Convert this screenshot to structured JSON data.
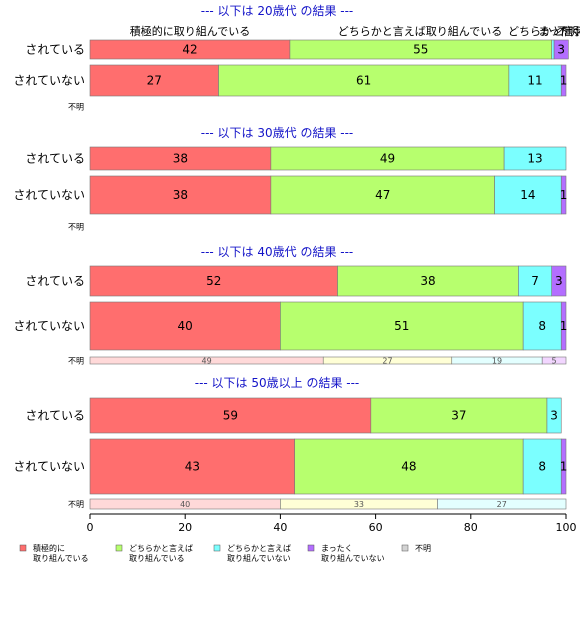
{
  "colors": {
    "c1": "#ff6e6e",
    "c2": "#b7ff6e",
    "c3": "#7bffff",
    "c4": "#b36eff",
    "c5": "#d3d3d3",
    "title": "#1414c8"
  },
  "top_headers": [
    "積極的に取り組んでいる",
    "どちらかと言えば取り組んでいる",
    "どちらかと言えば",
    "まったく",
    "不明"
  ],
  "legend": [
    {
      "color_key": "c1",
      "label_lines": [
        "積極的に",
        "取り組んでいる"
      ]
    },
    {
      "color_key": "c2",
      "label_lines": [
        "どちらかと言えば",
        "取り組んでいる"
      ]
    },
    {
      "color_key": "c3",
      "label_lines": [
        "どちらかと言えば",
        "取り組んでいない"
      ]
    },
    {
      "color_key": "c4",
      "label_lines": [
        "まったく",
        "取り組んでいない"
      ]
    },
    {
      "color_key": "c5",
      "label_lines": [
        "不明"
      ]
    }
  ],
  "chart_data": {
    "type": "bar",
    "orientation": "horizontal",
    "stacked": true,
    "xlim": [
      0,
      100
    ],
    "xticks": [
      0,
      20,
      40,
      60,
      80,
      100
    ],
    "segment_categories": [
      "積極的に取り組んでいる",
      "どちらかと言えば取り組んでいる",
      "どちらかと言えば取り組んでいない",
      "まったく取り組んでいない",
      "不明"
    ],
    "panels": [
      {
        "title": "--- 以下は 20歳代 の結果 ---",
        "rows": [
          {
            "label": "されている",
            "values": [
              42,
              55,
              0.5,
              3,
              0
            ],
            "labels": [
              "42",
              "55",
              "",
              "3",
              ""
            ]
          },
          {
            "label": "されていない",
            "values": [
              27,
              61,
              11,
              1,
              0
            ],
            "labels": [
              "27",
              "61",
              "11",
              "1",
              ""
            ]
          },
          {
            "label": "不明",
            "values": [],
            "labels": []
          }
        ]
      },
      {
        "title": "--- 以下は 30歳代 の結果 ---",
        "rows": [
          {
            "label": "されている",
            "values": [
              38,
              49,
              13,
              0,
              0
            ],
            "labels": [
              "38",
              "49",
              "13",
              "",
              ""
            ]
          },
          {
            "label": "されていない",
            "values": [
              38,
              47,
              14,
              1,
              0
            ],
            "labels": [
              "38",
              "47",
              "14",
              "1",
              ""
            ]
          },
          {
            "label": "不明",
            "values": [],
            "labels": []
          }
        ]
      },
      {
        "title": "--- 以下は 40歳代 の結果 ---",
        "rows": [
          {
            "label": "されている",
            "values": [
              52,
              38,
              7,
              3,
              0
            ],
            "labels": [
              "52",
              "38",
              "7",
              "3",
              ""
            ]
          },
          {
            "label": "されていない",
            "values": [
              40,
              51,
              8,
              1,
              0
            ],
            "labels": [
              "40",
              "51",
              "8",
              "1",
              ""
            ]
          },
          {
            "label": "不明",
            "values": [
              49,
              27,
              19,
              5,
              0
            ],
            "labels": [
              "49",
              "27",
              "19",
              "5",
              ""
            ]
          }
        ]
      },
      {
        "title": "--- 以下は 50歳以上 の結果 ---",
        "rows": [
          {
            "label": "されている",
            "values": [
              59,
              37,
              3,
              0,
              0
            ],
            "labels": [
              "59",
              "37",
              "3",
              "",
              ""
            ]
          },
          {
            "label": "されていない",
            "values": [
              43,
              48,
              8,
              1,
              0
            ],
            "labels": [
              "43",
              "48",
              "8",
              "1",
              ""
            ]
          },
          {
            "label": "不明",
            "values": [
              40,
              33,
              27,
              0,
              0
            ],
            "labels": [
              "40",
              "33",
              "27",
              "",
              ""
            ]
          }
        ]
      }
    ]
  }
}
